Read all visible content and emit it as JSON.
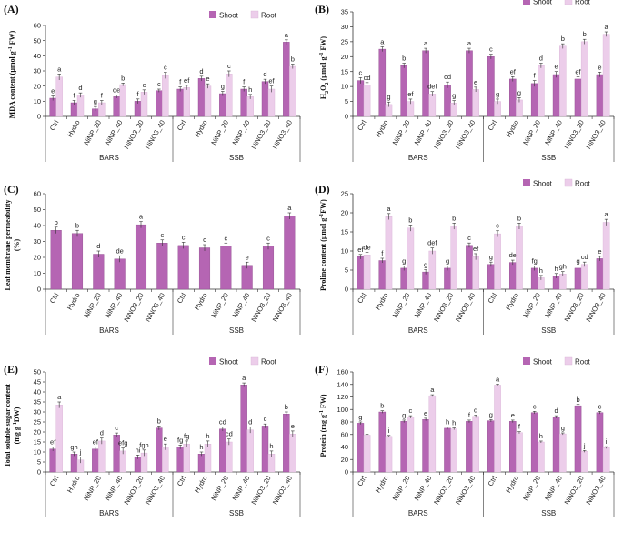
{
  "legend": {
    "shoot": "Shoot",
    "root": "Root"
  },
  "colors": {
    "shoot": "#b565b3",
    "root": "#eccdea",
    "axis": "#333333"
  },
  "groups": [
    "BARS",
    "SSB"
  ],
  "chart_data": [
    {
      "type": "bar",
      "panel": "(A)",
      "ylabel_parts": [
        [
          "MDA content (μmol g",
          false
        ],
        [
          "-1",
          true
        ],
        [
          " FW)",
          false
        ]
      ],
      "ylim": [
        0,
        60
      ],
      "yticks": [
        0,
        10,
        20,
        30,
        40,
        50,
        60
      ],
      "categories": [
        "Ctrl",
        "Hydro",
        "NiNP_20",
        "NiNP_40",
        "NiNO3_20",
        "NiNO3_40",
        "Ctrl",
        "Hydro",
        "NiNP_20",
        "NiNP_40",
        "NiNO3_20",
        "NiNO3_40"
      ],
      "legend_shown": true,
      "series": [
        {
          "name": "Shoot",
          "values": [
            12,
            9,
            5,
            13,
            10,
            17,
            18,
            25,
            15,
            18,
            23,
            49
          ],
          "errors": [
            1.5,
            1.5,
            1.5,
            1,
            1.5,
            1,
            1.5,
            1.5,
            1.5,
            1.5,
            1.5,
            1.5
          ],
          "letters": [
            "e",
            "f",
            "g",
            "de",
            "f",
            "c",
            "f",
            "d",
            "g",
            "f",
            "d",
            "a"
          ]
        },
        {
          "name": "Root",
          "values": [
            26,
            14,
            9,
            21,
            16,
            27,
            19,
            20,
            28,
            13,
            18,
            33
          ],
          "errors": [
            2,
            1.5,
            1.5,
            1,
            1.5,
            2,
            1.5,
            1.5,
            2,
            1.5,
            2,
            1.5
          ],
          "letters": [
            "a",
            "d",
            "f",
            "b",
            "c",
            "c",
            "ef",
            "e",
            "c",
            "h",
            "ef",
            "b"
          ]
        }
      ]
    },
    {
      "type": "bar",
      "panel": "(B)",
      "ylabel_parts": [
        [
          "H",
          false
        ],
        [
          "2",
          "sub"
        ],
        [
          "O",
          false
        ],
        [
          "2",
          "sub"
        ],
        [
          " (μmol g",
          false
        ],
        [
          "-1",
          true
        ],
        [
          " FW)",
          false
        ]
      ],
      "ylim": [
        0,
        35
      ],
      "yticks": [
        0,
        5,
        10,
        15,
        20,
        25,
        30,
        35
      ],
      "categories": [
        "Ctrl",
        "Hydro",
        "NiNP_20",
        "NiNP_40",
        "NiNO3_20",
        "NiNO3_40",
        "Ctrl",
        "Hydro",
        "NiNP_20",
        "NiNP_40",
        "NiNO3_20",
        "NiNO3_40"
      ],
      "legend_shown": true,
      "series": [
        {
          "name": "Shoot",
          "values": [
            12,
            22.5,
            17,
            22,
            10.5,
            22,
            20,
            12.5,
            11,
            14,
            12.5,
            14
          ],
          "errors": [
            1,
            0.8,
            0.8,
            0.8,
            1,
            0.8,
            0.8,
            0.8,
            1,
            1,
            0.8,
            0.8
          ],
          "letters": [
            "c",
            "a",
            "b",
            "a",
            "cd",
            "a",
            "c",
            "ef",
            "f",
            "e",
            "ef",
            "e"
          ]
        },
        {
          "name": "Root",
          "values": [
            10.5,
            4,
            5,
            7.5,
            4.5,
            9,
            5,
            5.5,
            17,
            23.5,
            25,
            27.5
          ],
          "errors": [
            0.8,
            0.8,
            0.8,
            0.8,
            0.8,
            0.8,
            0.8,
            0.8,
            0.8,
            0.8,
            0.8,
            0.8
          ],
          "letters": [
            "cd",
            "g",
            "ef",
            "def",
            "g",
            "e",
            "g",
            "g",
            "d",
            "b",
            "b",
            "a"
          ]
        }
      ]
    },
    {
      "type": "bar",
      "panel": "(C)",
      "ylabel_parts": [
        [
          "Leaf membrane permeability",
          false
        ],
        [
          "|",
          "br"
        ],
        [
          "(%)",
          false
        ]
      ],
      "ylim": [
        0,
        60
      ],
      "yticks": [
        0,
        10,
        20,
        30,
        40,
        50,
        60
      ],
      "categories": [
        "Ctrl",
        "Hydro",
        "NiNP_20",
        "NiNP_40",
        "NiNO3_20",
        "NiNO3_40",
        "Ctrl",
        "Hydro",
        "NiNP_20",
        "NiNP_40",
        "NiNO3_20",
        "NiNO3_40"
      ],
      "legend_shown": false,
      "series": [
        {
          "name": "Shoot",
          "values": [
            37,
            35,
            22,
            19,
            40.5,
            29,
            27.5,
            26,
            27,
            15,
            27,
            46
          ],
          "errors": [
            2,
            2,
            2,
            2,
            2,
            2,
            2,
            2,
            2,
            2,
            2,
            2
          ],
          "letters": [
            "b",
            "b",
            "d",
            "de",
            "a",
            "c",
            "c",
            "c",
            "c",
            "e",
            "c",
            "a"
          ]
        }
      ]
    },
    {
      "type": "bar",
      "panel": "(D)",
      "ylabel_parts": [
        [
          "Proline content (μmol g",
          false
        ],
        [
          "-1",
          true
        ],
        [
          "FW)",
          false
        ]
      ],
      "ylim": [
        0,
        25
      ],
      "yticks": [
        0,
        5,
        10,
        15,
        20,
        25
      ],
      "categories": [
        "Ctrl",
        "Hydro",
        "NiNP_20",
        "NiNP_40",
        "NiNO3_20",
        "NiNO3_40",
        "Ctrl",
        "Hydro",
        "NiNP_20",
        "NiNP_40",
        "NiNO3_20",
        "NiNO3_40"
      ],
      "legend_shown": true,
      "series": [
        {
          "name": "Shoot",
          "values": [
            8.5,
            7.5,
            5.5,
            4.5,
            5.5,
            11.5,
            6.5,
            7,
            5.5,
            3.5,
            5.5,
            8
          ],
          "errors": [
            0.6,
            0.6,
            0.6,
            0.6,
            0.6,
            0.6,
            0.6,
            0.6,
            0.6,
            0.6,
            0.6,
            0.6
          ],
          "letters": [
            "ef",
            "f",
            "g",
            "g",
            "g",
            "c",
            "g",
            "de",
            "fg",
            "h",
            "g",
            "e"
          ]
        },
        {
          "name": "Root",
          "values": [
            9,
            19,
            16,
            10,
            16.5,
            8.5,
            14.5,
            16.5,
            3,
            4,
            6.5,
            17.5
          ],
          "errors": [
            0.6,
            0.8,
            0.8,
            0.8,
            0.8,
            0.8,
            0.8,
            0.8,
            0.6,
            0.6,
            0.6,
            0.8
          ],
          "letters": [
            "de",
            "a",
            "b",
            "def",
            "b",
            "ef",
            "c",
            "b",
            "h",
            "gh",
            "cd",
            "a"
          ]
        }
      ]
    },
    {
      "type": "bar",
      "panel": "(E)",
      "ylabel_parts": [
        [
          "Total soluble sugar content",
          false
        ],
        [
          "|",
          "br"
        ],
        [
          "(mg g",
          false
        ],
        [
          "-1",
          true
        ],
        [
          "DW)",
          false
        ]
      ],
      "ylim": [
        0,
        50
      ],
      "yticks": [
        0,
        5,
        10,
        15,
        20,
        25,
        30,
        35,
        40,
        45,
        50
      ],
      "categories": [
        "Ctrl",
        "Hydro",
        "NiNP_20",
        "NiNP_40",
        "NiNO3_20",
        "NiNO3_40",
        "Ctrl",
        "Hydro",
        "NiNP_20",
        "NiNP_40",
        "NiNO3_20",
        "NiNO3_40"
      ],
      "legend_shown": true,
      "series": [
        {
          "name": "Shoot",
          "values": [
            11.5,
            9,
            11.5,
            18.5,
            7.5,
            22,
            12.5,
            9,
            21.5,
            43.5,
            23,
            29
          ],
          "errors": [
            1,
            1,
            1,
            1,
            1,
            1,
            1,
            1,
            1,
            1,
            1,
            1
          ],
          "letters": [
            "ef",
            "gh",
            "ef",
            "c",
            "hi",
            "b",
            "fg",
            "h",
            "cd",
            "a",
            "c",
            "b"
          ]
        },
        {
          "name": "Root",
          "values": [
            33.5,
            6,
            15.5,
            10.5,
            9.5,
            12.5,
            14,
            14,
            15,
            21,
            9,
            19
          ],
          "errors": [
            1.5,
            1.5,
            1.5,
            1.5,
            1.5,
            1.5,
            1.5,
            1.5,
            1.5,
            1.5,
            1.5,
            1.5
          ],
          "letters": [
            "a",
            "j",
            "d",
            "efg",
            "fgh",
            "e",
            "fg",
            "h",
            "cd",
            "d",
            "h",
            "e"
          ]
        }
      ]
    },
    {
      "type": "bar",
      "panel": "(F)",
      "ylabel_parts": [
        [
          "Protein (mg g",
          false
        ],
        [
          "-1",
          true
        ],
        [
          " FW)",
          false
        ]
      ],
      "ylim": [
        0,
        160
      ],
      "yticks": [
        0,
        20,
        40,
        60,
        80,
        100,
        120,
        140,
        160
      ],
      "categories": [
        "Ctrl",
        "Hydro",
        "NiNP_20",
        "NiNP_40",
        "NiNO3_20",
        "NiNO3_40",
        "Ctrl",
        "Hydro",
        "NiNP_20",
        "NiNP_40",
        "NiNO3_20",
        "NiNO3_40"
      ],
      "legend_shown": true,
      "series": [
        {
          "name": "Shoot",
          "values": [
            78,
            96,
            81,
            84,
            70,
            81,
            82,
            81,
            95,
            88,
            106,
            95
          ],
          "errors": [
            2,
            2,
            2,
            2,
            2,
            2,
            2,
            2,
            2,
            2,
            2,
            2
          ],
          "letters": [
            "g",
            "b",
            "g",
            "e",
            "h",
            "f",
            "g",
            "e",
            "c",
            "d",
            "b",
            "c"
          ]
        },
        {
          "name": "Root",
          "values": [
            59,
            57,
            88,
            122,
            69,
            89,
            139,
            63,
            48,
            61,
            33,
            39
          ],
          "errors": [
            1.5,
            1.5,
            2,
            1.5,
            1.5,
            2,
            1.5,
            1.5,
            1.5,
            1.5,
            1.5,
            1.5
          ],
          "letters": [
            "i",
            "i",
            "c",
            "a",
            "h",
            "d",
            "a",
            "f",
            "h",
            "g",
            "j",
            "i"
          ]
        }
      ]
    }
  ]
}
